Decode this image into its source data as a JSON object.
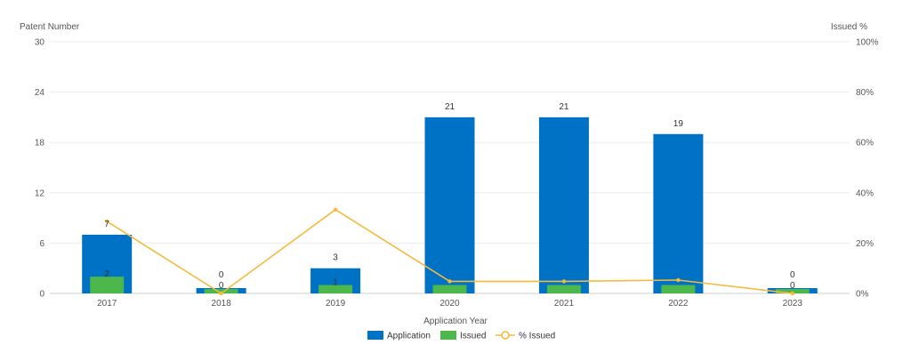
{
  "chart_data": {
    "type": "bar",
    "categories": [
      "2017",
      "2018",
      "2019",
      "2020",
      "2021",
      "2022",
      "2023"
    ],
    "xlabel": "Application Year",
    "ylabel_left": "Patent Number",
    "ylabel_right": "Issued %",
    "ylim_left": [
      0,
      30
    ],
    "ylim_right": [
      0,
      100
    ],
    "yticks_left": [
      "0",
      "6",
      "12",
      "18",
      "24",
      "30"
    ],
    "yticks_right": [
      "0%",
      "20%",
      "40%",
      "60%",
      "80%",
      "100%"
    ],
    "series": [
      {
        "name": "Application",
        "type": "bar",
        "axis": "left",
        "color": "#0072C6",
        "values": [
          7,
          0,
          3,
          21,
          21,
          19,
          0
        ],
        "labels": [
          "7",
          "0",
          "3",
          "21",
          "21",
          "19",
          "0"
        ]
      },
      {
        "name": "Issued",
        "type": "bar",
        "axis": "left",
        "color": "#4CB84C",
        "values": [
          2,
          0,
          1,
          1,
          1,
          1,
          0
        ],
        "labels": [
          "2",
          "0",
          "1",
          "",
          "",
          "",
          "0"
        ]
      },
      {
        "name": "% Issued",
        "type": "line",
        "axis": "right",
        "color": "#F6B93B",
        "values": [
          28.6,
          0,
          33.3,
          4.8,
          4.8,
          5.3,
          0
        ]
      }
    ],
    "grid": true,
    "legend": "bottom-center"
  }
}
